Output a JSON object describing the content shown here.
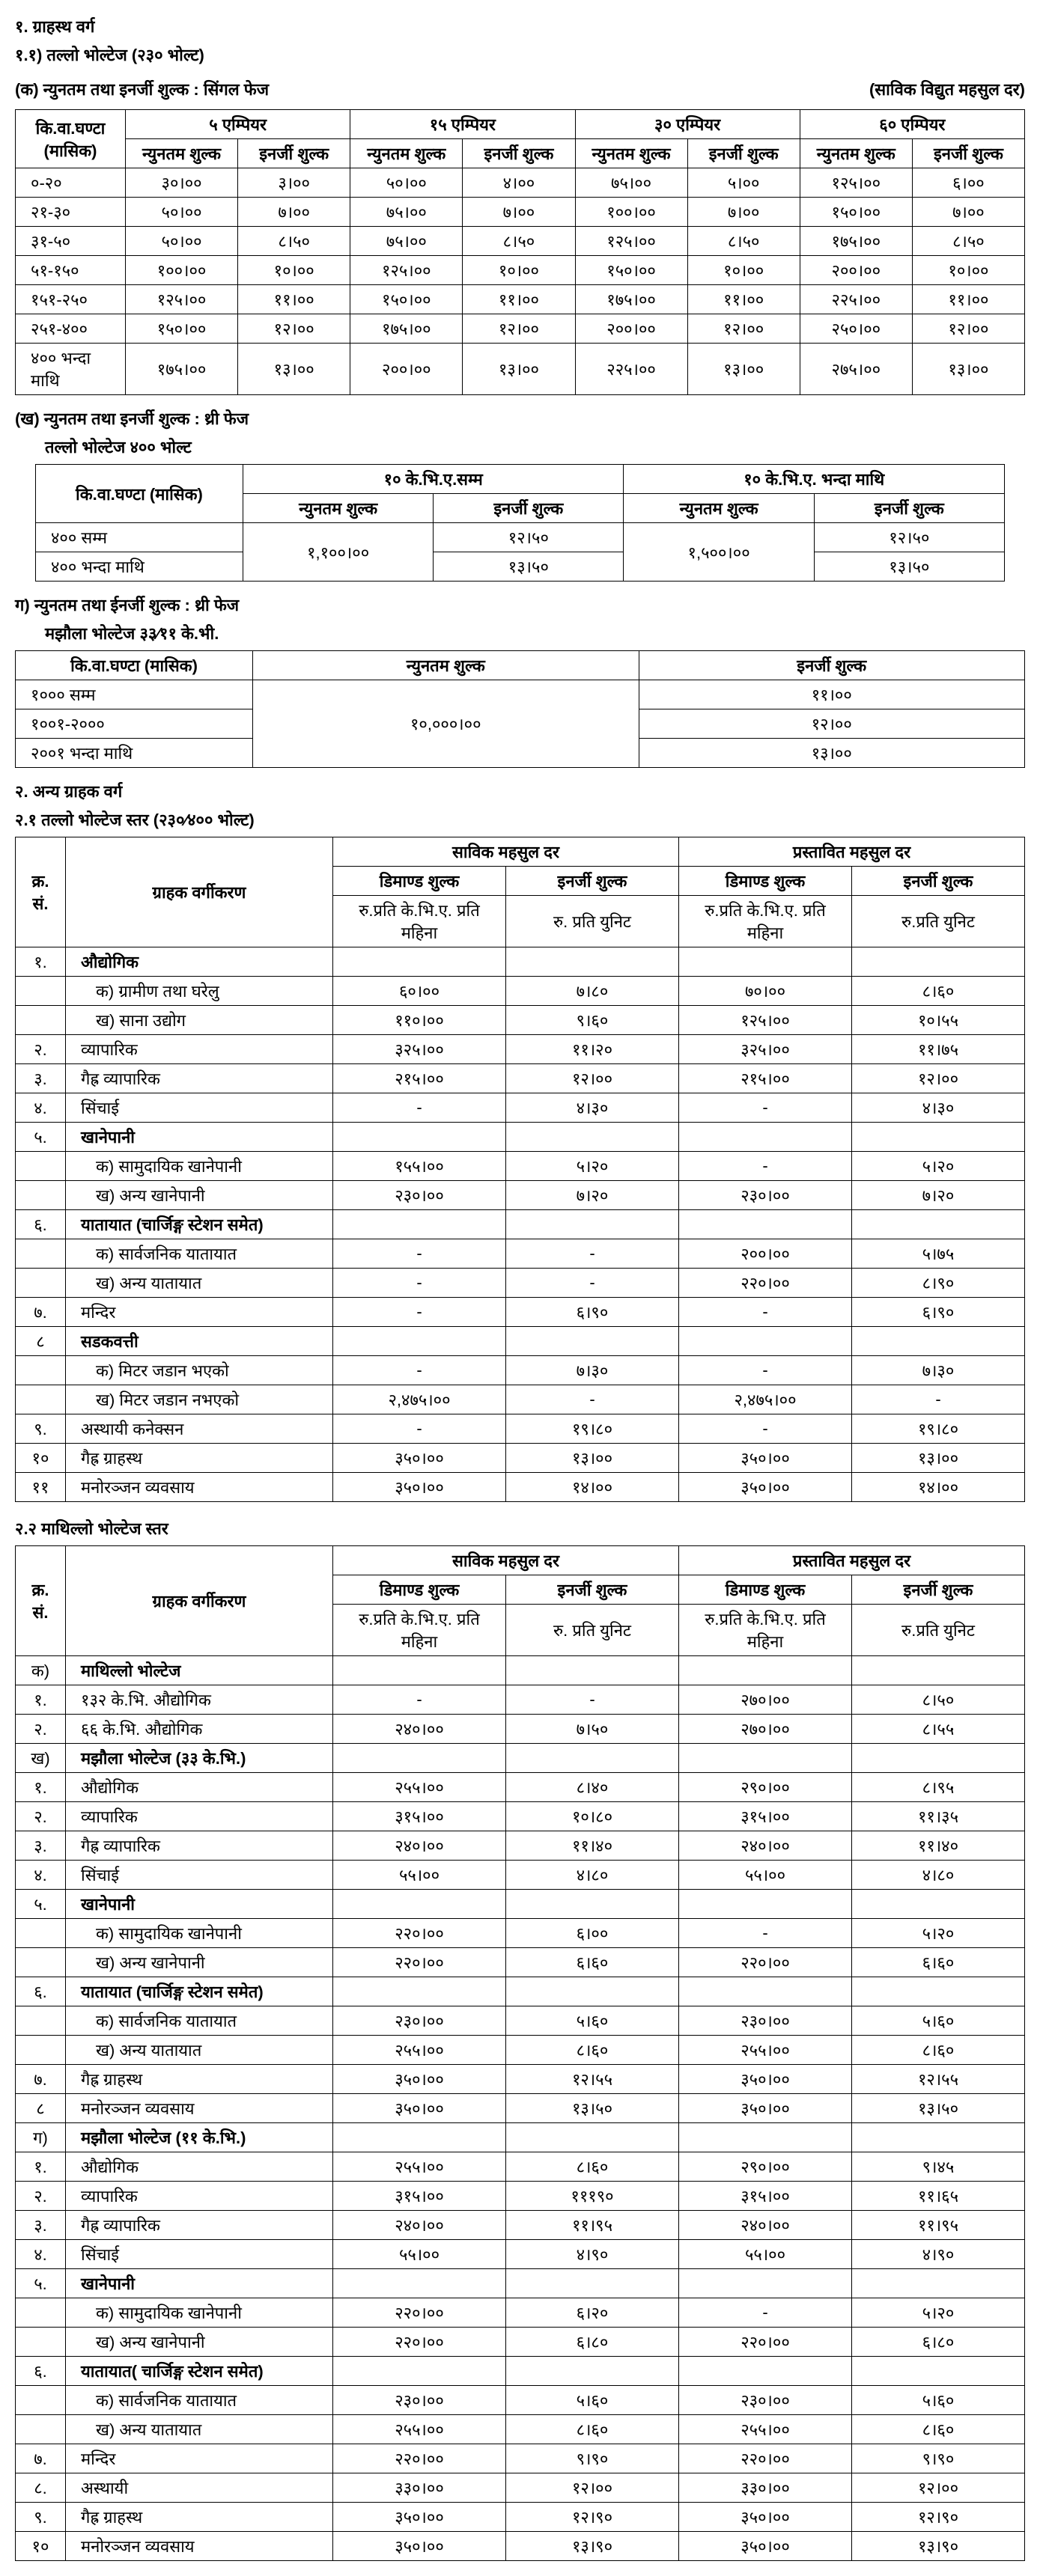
{
  "s1": {
    "h1": "१.    ग्राहस्थ वर्ग",
    "h11": "१.१)   तल्लो भोल्टेज (२३० भोल्ट)",
    "ka": "(क)    न्युनतम तथा इनर्जी शुल्क : सिंगल फेज",
    "note": "(साविक विद्युत महसुल दर)",
    "t1": {
      "c0": "कि.वा.घण्टा (मासिक)",
      "amps": [
        "५ एम्पियर",
        "१५ एम्पियर",
        "३० एम्पियर",
        "६० एम्पियर"
      ],
      "sub": [
        "न्युनतम शुल्क",
        "इनर्जी शुल्क"
      ],
      "rows": [
        [
          "०-२०",
          "३०।००",
          "३।००",
          "५०।००",
          "४।००",
          "७५।००",
          "५।००",
          "१२५।००",
          "६।००"
        ],
        [
          "२१-३०",
          "५०।००",
          "७।००",
          "७५।००",
          "७।००",
          "१००।००",
          "७।००",
          "१५०।००",
          "७।००"
        ],
        [
          "३१-५०",
          "५०।००",
          "८।५०",
          "७५।००",
          "८।५०",
          "१२५।००",
          "८।५०",
          "१७५।००",
          "८।५०"
        ],
        [
          "५१-१५०",
          "१००।००",
          "१०।००",
          "१२५।००",
          "१०।००",
          "१५०।००",
          "१०।००",
          "२००।००",
          "१०।००"
        ],
        [
          "१५१-२५०",
          "१२५।००",
          "११।००",
          "१५०।००",
          "११।००",
          "१७५।००",
          "११।००",
          "२२५।००",
          "११।००"
        ],
        [
          "२५१-४००",
          "१५०।००",
          "१२।००",
          "१७५।००",
          "१२।००",
          "२००।००",
          "१२।००",
          "२५०।००",
          "१२।००"
        ],
        [
          "४०० भन्दा माथि",
          "१७५।००",
          "१३।००",
          "२००।००",
          "१३।००",
          "२२५।००",
          "१३।००",
          "२७५।००",
          "१३।००"
        ]
      ]
    },
    "kha": "(ख)   न्युनतम तथा इनर्जी शुल्क : थ्री फेज",
    "kha2": "तल्लो भोल्टेज ४०० भोल्ट",
    "t2": {
      "c0": "कि.वा.घण्टा (मासिक)",
      "grp": [
        "१० के.भि.ए.सम्म",
        "१० के.भि.ए. भन्दा माथि"
      ],
      "sub": [
        "न्युनतम शुल्क",
        "इनर्जी शुल्क"
      ],
      "rows": [
        [
          "४०० सम्म",
          "१२।५०",
          "१२।५०"
        ],
        [
          "४०० भन्दा माथि",
          "१३।५०",
          "१३।५०"
        ]
      ],
      "merge1": "१,१००।००",
      "merge2": "१,५००।००"
    },
    "ga": "ग)    न्युनतम तथा ईनर्जी शुल्क  : थ्री फेज",
    "ga2": "मझौला भोल्टेज ३३∕११ के.भी.",
    "t3": {
      "c0": "कि.वा.घण्टा (मासिक)",
      "h1": "न्युनतम शुल्क",
      "h2": "इनर्जी शुल्क",
      "merge": "१०,०००।००",
      "rows": [
        [
          "१००० सम्म",
          "११।००"
        ],
        [
          "१००१-२०००",
          "१२।००"
        ],
        [
          "२००१ भन्दा माथि",
          "१३।००"
        ]
      ]
    }
  },
  "s2": {
    "h2": "२.    अन्य ग्राहक वर्ग",
    "h21": "२.१   तल्लो भोल्टेज स्तर (२३०∕४०० भोल्ट)",
    "t4": {
      "hd": {
        "sn": "क्र. सं.",
        "cls": "ग्राहक वर्गीकरण",
        "g1": "साविक महसुल दर",
        "g2": "प्रस्तावित महसुल दर",
        "d": "डिमाण्ड शुल्क",
        "e": "इनर्जी शुल्क",
        "du": "रु.प्रति के.भि.ए. प्रति महिना",
        "eu": "रु. प्रति युनिट",
        "eu2": "रु.प्रति युनिट"
      },
      "rows": [
        {
          "n": "१.",
          "c": "औद्योगिक",
          "v": [
            "",
            "",
            "",
            ""
          ],
          "bold": true
        },
        {
          "n": "",
          "c": "क) ग्रामीण तथा घरेलु",
          "v": [
            "६०।००",
            "७।८०",
            "७०।००",
            "८।६०"
          ],
          "ind": true
        },
        {
          "n": "",
          "c": "ख) साना उद्योग",
          "v": [
            "११०।००",
            "९।६०",
            "१२५।००",
            "१०।५५"
          ],
          "ind": true
        },
        {
          "n": "२.",
          "c": "व्यापारिक",
          "v": [
            "३२५।००",
            "११।२०",
            "३२५।००",
            "११।७५"
          ]
        },
        {
          "n": "३.",
          "c": "गैह्र व्यापारिक",
          "v": [
            "२१५।००",
            "१२।००",
            "२१५।००",
            "१२।००"
          ]
        },
        {
          "n": "४.",
          "c": "सिंचाई",
          "v": [
            "-",
            "४।३०",
            "-",
            "४।३०"
          ]
        },
        {
          "n": "५.",
          "c": "खानेपानी",
          "v": [
            "",
            "",
            "",
            ""
          ],
          "bold": true
        },
        {
          "n": "",
          "c": "क) सामुदायिक खानेपानी",
          "v": [
            "१५५।००",
            "५।२०",
            "-",
            "५।२०"
          ],
          "ind": true
        },
        {
          "n": "",
          "c": "ख) अन्य खानेपानी",
          "v": [
            "२३०।००",
            "७।२०",
            "२३०।००",
            "७।२०"
          ],
          "ind": true
        },
        {
          "n": "६.",
          "c": "यातायात (चार्जिङ्ग स्टेशन समेत)",
          "v": [
            "",
            "",
            "",
            ""
          ],
          "bold": true
        },
        {
          "n": "",
          "c": "क) सार्वजनिक यातायात",
          "v": [
            "-",
            "-",
            "२००।००",
            "५।७५"
          ],
          "ind": true
        },
        {
          "n": "",
          "c": "ख) अन्य यातायात",
          "v": [
            "-",
            "-",
            "२२०।००",
            "८।९०"
          ],
          "ind": true
        },
        {
          "n": "७.",
          "c": "मन्दिर",
          "v": [
            "-",
            "६।९०",
            "-",
            "६।९०"
          ]
        },
        {
          "n": "८",
          "c": "सडकवत्ती",
          "v": [
            "",
            "",
            "",
            ""
          ],
          "bold": true
        },
        {
          "n": "",
          "c": "क) मिटर जडान भएको",
          "v": [
            "-",
            "७।३०",
            "-",
            "७।३०"
          ],
          "ind": true
        },
        {
          "n": "",
          "c": "ख) मिटर जडान नभएको",
          "v": [
            "२,४७५।००",
            "-",
            "२,४७५।००",
            "-"
          ],
          "ind": true
        },
        {
          "n": "९.",
          "c": "अस्थायी कनेक्सन",
          "v": [
            "-",
            "१९।८०",
            "-",
            "१९।८०"
          ]
        },
        {
          "n": "१०",
          "c": "गैह्र ग्राहस्थ",
          "v": [
            "३५०।००",
            "१३।००",
            "३५०।००",
            "१३।००"
          ]
        },
        {
          "n": "११",
          "c": "मनोरञ्जन व्यवसाय",
          "v": [
            "३५०।००",
            "१४।००",
            "३५०।००",
            "१४।००"
          ]
        }
      ]
    },
    "h22": "२.२   माथिल्लो भोल्टेज स्तर",
    "t5": {
      "rows": [
        {
          "n": "क)",
          "c": "माथिल्लो भोल्टेज",
          "v": [
            "",
            "",
            "",
            ""
          ],
          "bold": true
        },
        {
          "n": "१.",
          "c": "१३२ के.भि. औद्योगिक",
          "v": [
            "-",
            "-",
            "२७०।००",
            "८।५०"
          ]
        },
        {
          "n": "२.",
          "c": "६६ के.भि. औद्योगिक",
          "v": [
            "२४०।००",
            "७।५०",
            "२७०।००",
            "८।५५"
          ]
        },
        {
          "n": "ख)",
          "c": "मझौला भोल्टेज (३३ के.भि.)",
          "v": [
            "",
            "",
            "",
            ""
          ],
          "bold": true
        },
        {
          "n": "१.",
          "c": "औद्योगिक",
          "v": [
            "२५५।००",
            "८।४०",
            "२९०।००",
            "८।९५"
          ]
        },
        {
          "n": "२.",
          "c": "व्यापारिक",
          "v": [
            "३१५।००",
            "१०।८०",
            "३१५।००",
            "११।३५"
          ]
        },
        {
          "n": "३.",
          "c": "गैह्र व्यापारिक",
          "v": [
            "२४०।००",
            "११।४०",
            "२४०।००",
            "११।४०"
          ]
        },
        {
          "n": "४.",
          "c": "सिंचाई",
          "v": [
            "५५।००",
            "४।८०",
            "५५।००",
            "४।८०"
          ]
        },
        {
          "n": "५.",
          "c": "खानेपानी",
          "v": [
            "",
            "",
            "",
            ""
          ],
          "bold": true
        },
        {
          "n": "",
          "c": "क) सामुदायिक खानेपानी",
          "v": [
            "२२०।००",
            "६।००",
            "-",
            "५।२०"
          ],
          "ind": true
        },
        {
          "n": "",
          "c": "ख) अन्य खानेपानी",
          "v": [
            "२२०।००",
            "६।६०",
            "२२०।००",
            "६।६०"
          ],
          "ind": true
        },
        {
          "n": "६.",
          "c": "यातायात (चार्जिङ्ग स्टेशन समेत)",
          "v": [
            "",
            "",
            "",
            ""
          ],
          "bold": true
        },
        {
          "n": "",
          "c": "क) सार्वजनिक यातायात",
          "v": [
            "२३०।००",
            "५।६०",
            "२३०।००",
            "५।६०"
          ],
          "ind": true
        },
        {
          "n": "",
          "c": "ख) अन्य यातायात",
          "v": [
            "२५५।००",
            "८।६०",
            "२५५।००",
            "८।६०"
          ],
          "ind": true
        },
        {
          "n": "७.",
          "c": "गैह्र ग्राहस्थ",
          "v": [
            "३५०।००",
            "१२।५५",
            "३५०।००",
            "१२।५५"
          ]
        },
        {
          "n": "८",
          "c": "मनोरञ्जन व्यवसाय",
          "v": [
            "३५०।००",
            "१३।५०",
            "३५०।००",
            "१३।५०"
          ]
        },
        {
          "n": "ग)",
          "c": "मझौला भोल्टेज (११ के.भि.)",
          "v": [
            "",
            "",
            "",
            ""
          ],
          "bold": true
        },
        {
          "n": "१.",
          "c": "औद्योगिक",
          "v": [
            "२५५।००",
            "८।६०",
            "२९०।००",
            "९।४५"
          ]
        },
        {
          "n": "२.",
          "c": "व्यापारिक",
          "v": [
            "३१५।००",
            "१११९०",
            "३१५।००",
            "११।६५"
          ]
        },
        {
          "n": "३.",
          "c": "गैह्र व्यापारिक",
          "v": [
            "२४०।००",
            "११।९५",
            "२४०।००",
            "११।९५"
          ]
        },
        {
          "n": "४.",
          "c": "सिंचाई",
          "v": [
            "५५।००",
            "४।९०",
            "५५।००",
            "४।९०"
          ]
        },
        {
          "n": "५.",
          "c": "खानेपानी",
          "v": [
            "",
            "",
            "",
            ""
          ],
          "bold": true
        },
        {
          "n": "",
          "c": "क) सामुदायिक खानेपानी",
          "v": [
            "२२०।००",
            "६।२०",
            "-",
            "५।२०"
          ],
          "ind": true
        },
        {
          "n": "",
          "c": "ख) अन्य खानेपानी",
          "v": [
            "२२०।००",
            "६।८०",
            "२२०।००",
            "६।८०"
          ],
          "ind": true
        },
        {
          "n": "६.",
          "c": "यातायात( चार्जिङ्ग स्टेशन समेत)",
          "v": [
            "",
            "",
            "",
            ""
          ],
          "bold": true
        },
        {
          "n": "",
          "c": "क) सार्वजनिक   यातायात",
          "v": [
            "२३०।००",
            "५।६०",
            "२३०।००",
            "५।६०"
          ],
          "ind": true
        },
        {
          "n": "",
          "c": "ख) अन्य यातायात",
          "v": [
            "२५५।००",
            "८।६०",
            "२५५।००",
            "८।६०"
          ],
          "ind": true
        },
        {
          "n": "७.",
          "c": "मन्दिर",
          "v": [
            "२२०।००",
            "९।९०",
            "२२०।००",
            "९।९०"
          ]
        },
        {
          "n": "८.",
          "c": "अस्थायी",
          "v": [
            "३३०।००",
            "१२।००",
            "३३०।००",
            "१२।००"
          ]
        },
        {
          "n": "९.",
          "c": "गैह्र ग्राहस्थ",
          "v": [
            "३५०।००",
            "१२।९०",
            "३५०।००",
            "१२।९०"
          ]
        },
        {
          "n": "१०",
          "c": "मनोरञ्जन व्यवसाय",
          "v": [
            "३५०।००",
            "१३।९०",
            "३५०।००",
            "१३।९०"
          ]
        }
      ]
    }
  }
}
